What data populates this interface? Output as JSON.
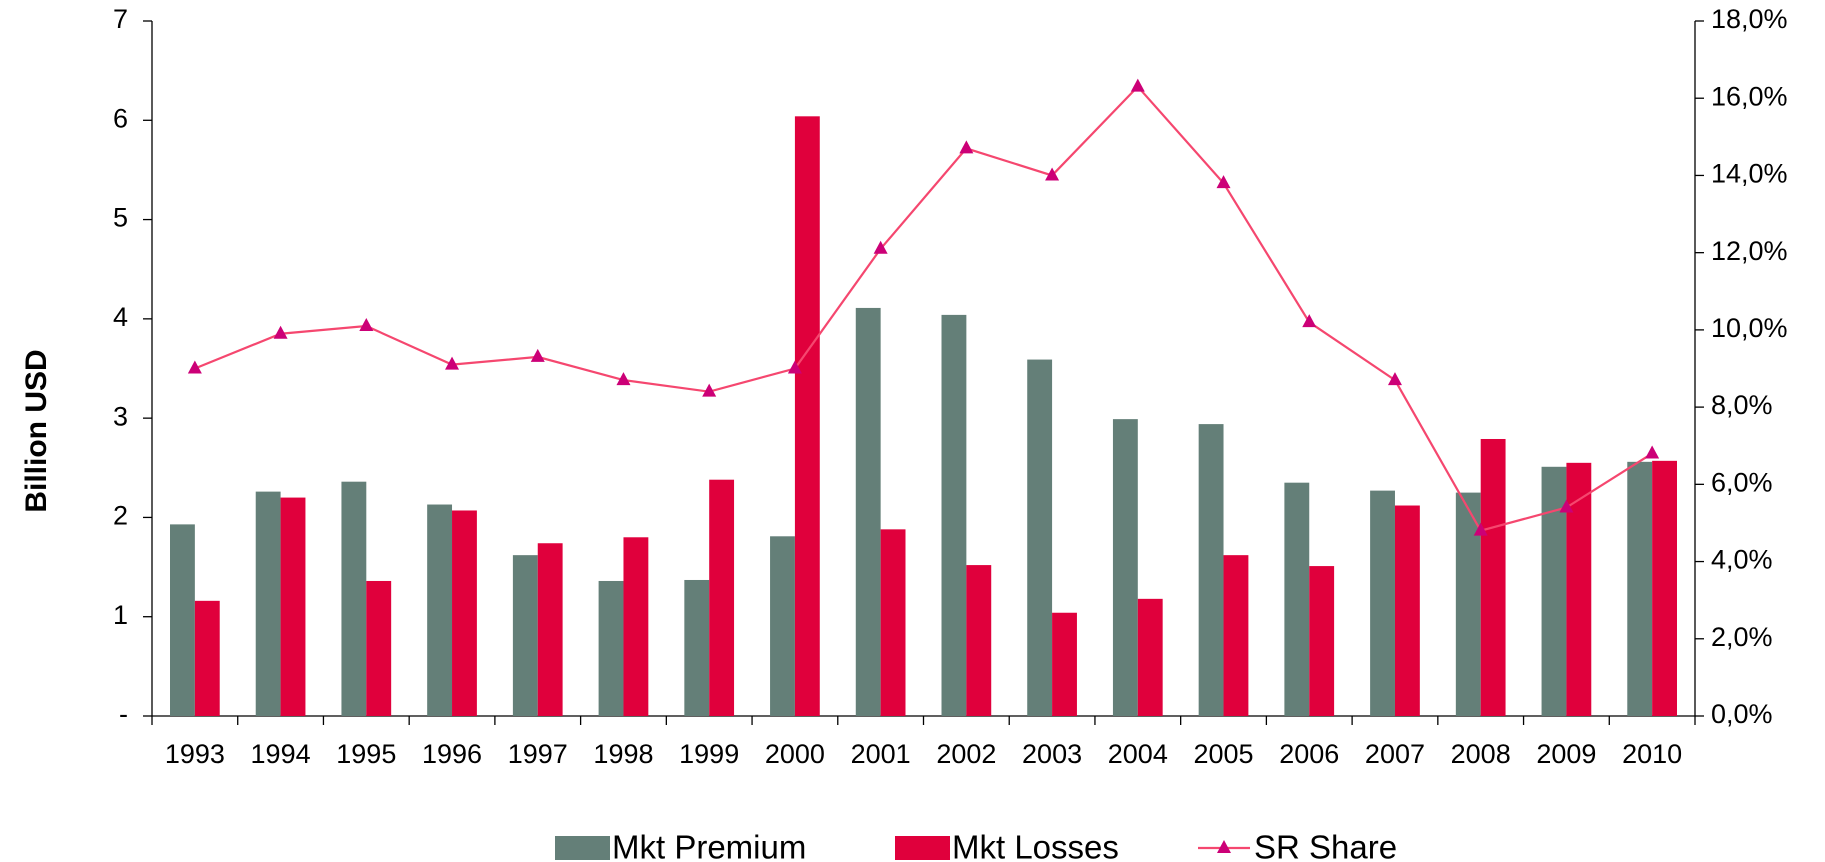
{
  "chart_data": {
    "type": "bar",
    "y_label": "Billion USD",
    "categories": [
      "1993",
      "1994",
      "1995",
      "1996",
      "1997",
      "1998",
      "1999",
      "2000",
      "2001",
      "2002",
      "2003",
      "2004",
      "2005",
      "2006",
      "2007",
      "2008",
      "2009",
      "2010"
    ],
    "series": [
      {
        "name": "Mkt Premium",
        "type": "bar",
        "color": "#647f78",
        "values": [
          1.93,
          2.26,
          2.36,
          2.13,
          1.62,
          1.36,
          1.37,
          1.81,
          4.11,
          4.04,
          3.59,
          2.99,
          2.94,
          2.35,
          2.27,
          2.25,
          2.51,
          2.56
        ]
      },
      {
        "name": "Mkt Losses",
        "type": "bar",
        "color": "#e0003c",
        "values": [
          1.16,
          2.2,
          1.36,
          2.07,
          1.74,
          1.8,
          2.38,
          6.04,
          1.88,
          1.52,
          1.04,
          1.18,
          1.62,
          1.51,
          2.12,
          2.79,
          2.55,
          2.57
        ]
      },
      {
        "name": "SR Share",
        "type": "line",
        "axis": "y2",
        "color": "#f5476f",
        "marker_color": "#cc0077",
        "values": [
          9.0,
          9.9,
          10.1,
          9.1,
          9.3,
          8.7,
          8.4,
          9.0,
          12.1,
          14.7,
          14.0,
          16.3,
          13.8,
          10.2,
          8.7,
          4.8,
          5.4,
          6.8
        ]
      }
    ],
    "ylim": [
      0,
      7
    ],
    "yticks": [
      {
        "value": 0,
        "label": "-"
      },
      1,
      2,
      3,
      4,
      5,
      6,
      7
    ],
    "y2lim": [
      0,
      18
    ],
    "y2ticks": [
      {
        "value": 0,
        "label": "0,0%"
      },
      {
        "value": 2,
        "label": "2,0%"
      },
      {
        "value": 4,
        "label": "4,0%"
      },
      {
        "value": 6,
        "label": "6,0%"
      },
      {
        "value": 8,
        "label": "8,0%"
      },
      {
        "value": 10,
        "label": "10,0%"
      },
      {
        "value": 12,
        "label": "12,0%"
      },
      {
        "value": 14,
        "label": "14,0%"
      },
      {
        "value": 16,
        "label": "16,0%"
      },
      {
        "value": 18,
        "label": "18,0%"
      }
    ],
    "grid": false,
    "legend": "bottom"
  }
}
